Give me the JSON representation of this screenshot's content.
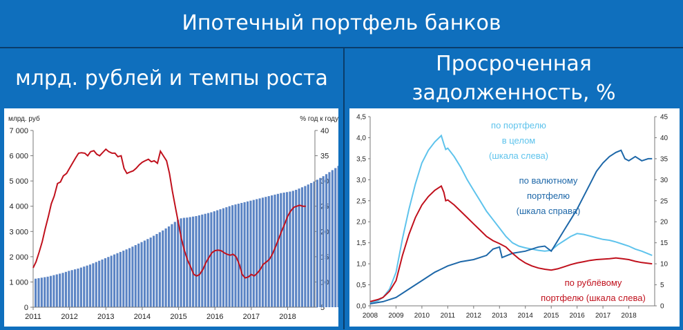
{
  "page": {
    "title": "Ипотечный портфель банков",
    "left_header": "млрд. рублей и темпы роста",
    "right_header_line1": "Просроченная",
    "right_header_line2": "задолженность, %"
  },
  "colors": {
    "band": "#0f6fbd",
    "bars": "#5b84c4",
    "red": "#c0101c",
    "light_blue": "#5ec3ec",
    "dark_blue": "#1d67a8"
  },
  "chart_data": [
    {
      "type": "bar",
      "ylabel_left": "млрд. руб",
      "ylabel_right": "% год к году",
      "ylim_left": [
        0,
        7000
      ],
      "ylim_right": [
        5,
        40
      ],
      "yticks_left": [
        "0",
        "1 000",
        "2 000",
        "3 000",
        "4 000",
        "5 000",
        "6 000",
        "7 000"
      ],
      "yticks_right": [
        "5",
        "10",
        "15",
        "20",
        "25",
        "30",
        "35",
        "40"
      ],
      "xticks": [
        "2011",
        "2012",
        "2013",
        "2014",
        "2015",
        "2016",
        "2017",
        "2018"
      ],
      "x_range": [
        2011.0,
        2018.75
      ],
      "bars": {
        "name": "Ипотечный портфель, млрд. руб",
        "start": 2011.0,
        "step": 0.0833,
        "values": [
          1130,
          1150,
          1170,
          1190,
          1210,
          1240,
          1270,
          1300,
          1330,
          1360,
          1400,
          1440,
          1470,
          1500,
          1530,
          1570,
          1610,
          1650,
          1690,
          1740,
          1790,
          1840,
          1890,
          1940,
          1990,
          2040,
          2090,
          2140,
          2190,
          2240,
          2290,
          2340,
          2400,
          2460,
          2520,
          2580,
          2640,
          2700,
          2760,
          2830,
          2900,
          2970,
          3040,
          3120,
          3200,
          3290,
          3380,
          3460,
          3520,
          3540,
          3550,
          3570,
          3590,
          3610,
          3640,
          3670,
          3700,
          3730,
          3760,
          3800,
          3840,
          3880,
          3920,
          3960,
          4000,
          4040,
          4070,
          4100,
          4130,
          4160,
          4190,
          4220,
          4250,
          4280,
          4310,
          4340,
          4370,
          4400,
          4430,
          4460,
          4490,
          4520,
          4540,
          4560,
          4580,
          4610,
          4650,
          4700,
          4750,
          4800,
          4860,
          4920,
          4980,
          5050,
          5120,
          5190,
          5270,
          5350,
          5430,
          5510,
          5600,
          5700,
          5800,
          5900,
          6000,
          6100
        ]
      },
      "growth": {
        "name": "Темп роста, % год к году",
        "points": [
          [
            2011.0,
            12.8
          ],
          [
            2011.08,
            14.0
          ],
          [
            2011.17,
            16.0
          ],
          [
            2011.25,
            18.0
          ],
          [
            2011.33,
            20.5
          ],
          [
            2011.42,
            23.0
          ],
          [
            2011.5,
            25.5
          ],
          [
            2011.58,
            27.0
          ],
          [
            2011.67,
            29.5
          ],
          [
            2011.75,
            29.8
          ],
          [
            2011.83,
            31.0
          ],
          [
            2011.92,
            31.5
          ],
          [
            2012.0,
            32.5
          ],
          [
            2012.08,
            33.5
          ],
          [
            2012.17,
            34.6
          ],
          [
            2012.25,
            35.5
          ],
          [
            2012.33,
            35.6
          ],
          [
            2012.42,
            35.5
          ],
          [
            2012.5,
            35.0
          ],
          [
            2012.58,
            35.8
          ],
          [
            2012.67,
            36.0
          ],
          [
            2012.75,
            35.3
          ],
          [
            2012.83,
            35.0
          ],
          [
            2012.92,
            35.7
          ],
          [
            2013.0,
            36.3
          ],
          [
            2013.08,
            35.8
          ],
          [
            2013.17,
            35.5
          ],
          [
            2013.25,
            35.5
          ],
          [
            2013.33,
            34.8
          ],
          [
            2013.42,
            35.0
          ],
          [
            2013.5,
            32.5
          ],
          [
            2013.58,
            31.5
          ],
          [
            2013.67,
            31.8
          ],
          [
            2013.75,
            32.0
          ],
          [
            2013.83,
            32.5
          ],
          [
            2013.92,
            33.2
          ],
          [
            2014.0,
            33.7
          ],
          [
            2014.08,
            34.0
          ],
          [
            2014.17,
            34.3
          ],
          [
            2014.25,
            33.8
          ],
          [
            2014.33,
            34.0
          ],
          [
            2014.42,
            33.5
          ],
          [
            2014.5,
            35.9
          ],
          [
            2014.58,
            35.0
          ],
          [
            2014.67,
            34.0
          ],
          [
            2014.75,
            31.5
          ],
          [
            2014.83,
            28.0
          ],
          [
            2014.92,
            24.5
          ],
          [
            2015.0,
            21.5
          ],
          [
            2015.08,
            18.5
          ],
          [
            2015.17,
            16.0
          ],
          [
            2015.25,
            14.3
          ],
          [
            2015.33,
            13.0
          ],
          [
            2015.42,
            11.5
          ],
          [
            2015.5,
            11.2
          ],
          [
            2015.58,
            11.5
          ],
          [
            2015.67,
            12.5
          ],
          [
            2015.75,
            13.8
          ],
          [
            2015.83,
            14.8
          ],
          [
            2015.92,
            15.8
          ],
          [
            2016.0,
            16.2
          ],
          [
            2016.08,
            16.3
          ],
          [
            2016.17,
            16.2
          ],
          [
            2016.25,
            15.8
          ],
          [
            2016.33,
            15.5
          ],
          [
            2016.42,
            15.3
          ],
          [
            2016.5,
            15.5
          ],
          [
            2016.58,
            15.0
          ],
          [
            2016.67,
            13.5
          ],
          [
            2016.75,
            11.5
          ],
          [
            2016.83,
            10.8
          ],
          [
            2016.92,
            11.0
          ],
          [
            2017.0,
            11.5
          ],
          [
            2017.08,
            11.2
          ],
          [
            2017.17,
            11.8
          ],
          [
            2017.25,
            12.5
          ],
          [
            2017.33,
            13.5
          ],
          [
            2017.42,
            14.0
          ],
          [
            2017.5,
            14.5
          ],
          [
            2017.58,
            15.5
          ],
          [
            2017.67,
            17.0
          ],
          [
            2017.75,
            18.5
          ],
          [
            2017.83,
            20.0
          ],
          [
            2017.92,
            21.5
          ],
          [
            2018.0,
            23.0
          ],
          [
            2018.08,
            24.0
          ],
          [
            2018.17,
            24.8
          ],
          [
            2018.25,
            25.0
          ],
          [
            2018.33,
            25.2
          ],
          [
            2018.42,
            25.0
          ],
          [
            2018.5,
            25.0
          ]
        ]
      }
    },
    {
      "type": "line",
      "ylim_left": [
        0,
        4.5
      ],
      "ylim_right": [
        0,
        45
      ],
      "yticks_left": [
        "0,0",
        "0,5",
        "1,0",
        "1,5",
        "2,0",
        "2,5",
        "3,0",
        "3,5",
        "4,0",
        "4,5"
      ],
      "yticks_right": [
        "0",
        "5",
        "10",
        "15",
        "20",
        "25",
        "30",
        "35",
        "40",
        "45"
      ],
      "xticks": [
        "2008",
        "2009",
        "2010",
        "2011",
        "2012",
        "2013",
        "2014",
        "2015",
        "2016",
        "2017",
        "2018"
      ],
      "x_range": [
        2008.0,
        2019.0
      ],
      "annotations": {
        "total": [
          "по портфелю",
          "в целом",
          "(шкала слева)"
        ],
        "fx": [
          "по валютному",
          "портфелю",
          "(шкала справа)"
        ],
        "rub": [
          "по рублёвому",
          "портфелю (шкала слева)"
        ]
      },
      "series": [
        {
          "name": "по портфелю в целом (шкала слева)",
          "axis": "left",
          "points": [
            [
              2008.0,
              0.08
            ],
            [
              2008.3,
              0.12
            ],
            [
              2008.5,
              0.2
            ],
            [
              2008.75,
              0.4
            ],
            [
              2009.0,
              0.8
            ],
            [
              2009.25,
              1.6
            ],
            [
              2009.5,
              2.3
            ],
            [
              2009.75,
              2.9
            ],
            [
              2010.0,
              3.4
            ],
            [
              2010.25,
              3.7
            ],
            [
              2010.5,
              3.9
            ],
            [
              2010.75,
              4.05
            ],
            [
              2010.85,
              3.85
            ],
            [
              2010.92,
              3.72
            ],
            [
              2011.0,
              3.75
            ],
            [
              2011.25,
              3.55
            ],
            [
              2011.5,
              3.3
            ],
            [
              2011.75,
              3.0
            ],
            [
              2012.0,
              2.75
            ],
            [
              2012.25,
              2.5
            ],
            [
              2012.5,
              2.25
            ],
            [
              2012.75,
              2.05
            ],
            [
              2013.0,
              1.85
            ],
            [
              2013.25,
              1.65
            ],
            [
              2013.5,
              1.5
            ],
            [
              2013.75,
              1.42
            ],
            [
              2014.0,
              1.38
            ],
            [
              2014.25,
              1.35
            ],
            [
              2014.5,
              1.32
            ],
            [
              2014.75,
              1.3
            ],
            [
              2015.0,
              1.32
            ],
            [
              2015.25,
              1.45
            ],
            [
              2015.5,
              1.55
            ],
            [
              2015.75,
              1.65
            ],
            [
              2016.0,
              1.72
            ],
            [
              2016.25,
              1.7
            ],
            [
              2016.5,
              1.66
            ],
            [
              2016.75,
              1.62
            ],
            [
              2017.0,
              1.58
            ],
            [
              2017.25,
              1.56
            ],
            [
              2017.5,
              1.52
            ],
            [
              2017.75,
              1.47
            ],
            [
              2018.0,
              1.42
            ],
            [
              2018.25,
              1.35
            ],
            [
              2018.5,
              1.3
            ],
            [
              2018.9,
              1.2
            ]
          ]
        },
        {
          "name": "по валютному портфелю (шкала справа)",
          "axis": "right",
          "points": [
            [
              2008.0,
              0.5
            ],
            [
              2008.5,
              1.0
            ],
            [
              2009.0,
              2.0
            ],
            [
              2009.5,
              4.0
            ],
            [
              2010.0,
              6.0
            ],
            [
              2010.5,
              8.0
            ],
            [
              2011.0,
              9.5
            ],
            [
              2011.5,
              10.5
            ],
            [
              2012.0,
              11.0
            ],
            [
              2012.5,
              12.0
            ],
            [
              2012.75,
              13.5
            ],
            [
              2013.0,
              14.0
            ],
            [
              2013.1,
              11.5
            ],
            [
              2013.5,
              12.5
            ],
            [
              2014.0,
              13.0
            ],
            [
              2014.5,
              14.0
            ],
            [
              2014.75,
              14.2
            ],
            [
              2015.0,
              13.0
            ],
            [
              2015.2,
              15.0
            ],
            [
              2015.5,
              18.0
            ],
            [
              2015.75,
              20.5
            ],
            [
              2016.0,
              23.0
            ],
            [
              2016.25,
              26.0
            ],
            [
              2016.5,
              29.0
            ],
            [
              2016.75,
              32.0
            ],
            [
              2017.0,
              34.0
            ],
            [
              2017.25,
              35.5
            ],
            [
              2017.5,
              36.5
            ],
            [
              2017.7,
              37.0
            ],
            [
              2017.85,
              35.0
            ],
            [
              2018.0,
              34.5
            ],
            [
              2018.25,
              35.5
            ],
            [
              2018.5,
              34.5
            ],
            [
              2018.75,
              35.0
            ],
            [
              2018.9,
              35.0
            ]
          ]
        },
        {
          "name": "по рублёвому портфелю (шкала слева)",
          "axis": "left",
          "points": [
            [
              2008.0,
              0.1
            ],
            [
              2008.3,
              0.15
            ],
            [
              2008.5,
              0.2
            ],
            [
              2008.75,
              0.35
            ],
            [
              2009.0,
              0.6
            ],
            [
              2009.25,
              1.2
            ],
            [
              2009.5,
              1.7
            ],
            [
              2009.75,
              2.1
            ],
            [
              2010.0,
              2.4
            ],
            [
              2010.25,
              2.6
            ],
            [
              2010.5,
              2.75
            ],
            [
              2010.75,
              2.85
            ],
            [
              2010.85,
              2.7
            ],
            [
              2010.92,
              2.5
            ],
            [
              2011.0,
              2.52
            ],
            [
              2011.25,
              2.4
            ],
            [
              2011.5,
              2.25
            ],
            [
              2011.75,
              2.1
            ],
            [
              2012.0,
              1.95
            ],
            [
              2012.25,
              1.8
            ],
            [
              2012.5,
              1.65
            ],
            [
              2012.75,
              1.55
            ],
            [
              2013.0,
              1.48
            ],
            [
              2013.25,
              1.4
            ],
            [
              2013.5,
              1.25
            ],
            [
              2013.75,
              1.12
            ],
            [
              2014.0,
              1.02
            ],
            [
              2014.25,
              0.95
            ],
            [
              2014.5,
              0.9
            ],
            [
              2014.75,
              0.87
            ],
            [
              2015.0,
              0.85
            ],
            [
              2015.25,
              0.88
            ],
            [
              2015.5,
              0.93
            ],
            [
              2015.75,
              0.98
            ],
            [
              2016.0,
              1.02
            ],
            [
              2016.25,
              1.05
            ],
            [
              2016.5,
              1.08
            ],
            [
              2016.75,
              1.1
            ],
            [
              2017.0,
              1.11
            ],
            [
              2017.25,
              1.12
            ],
            [
              2017.5,
              1.14
            ],
            [
              2017.75,
              1.12
            ],
            [
              2018.0,
              1.1
            ],
            [
              2018.25,
              1.06
            ],
            [
              2018.5,
              1.03
            ],
            [
              2018.9,
              1.0
            ]
          ]
        }
      ]
    }
  ]
}
